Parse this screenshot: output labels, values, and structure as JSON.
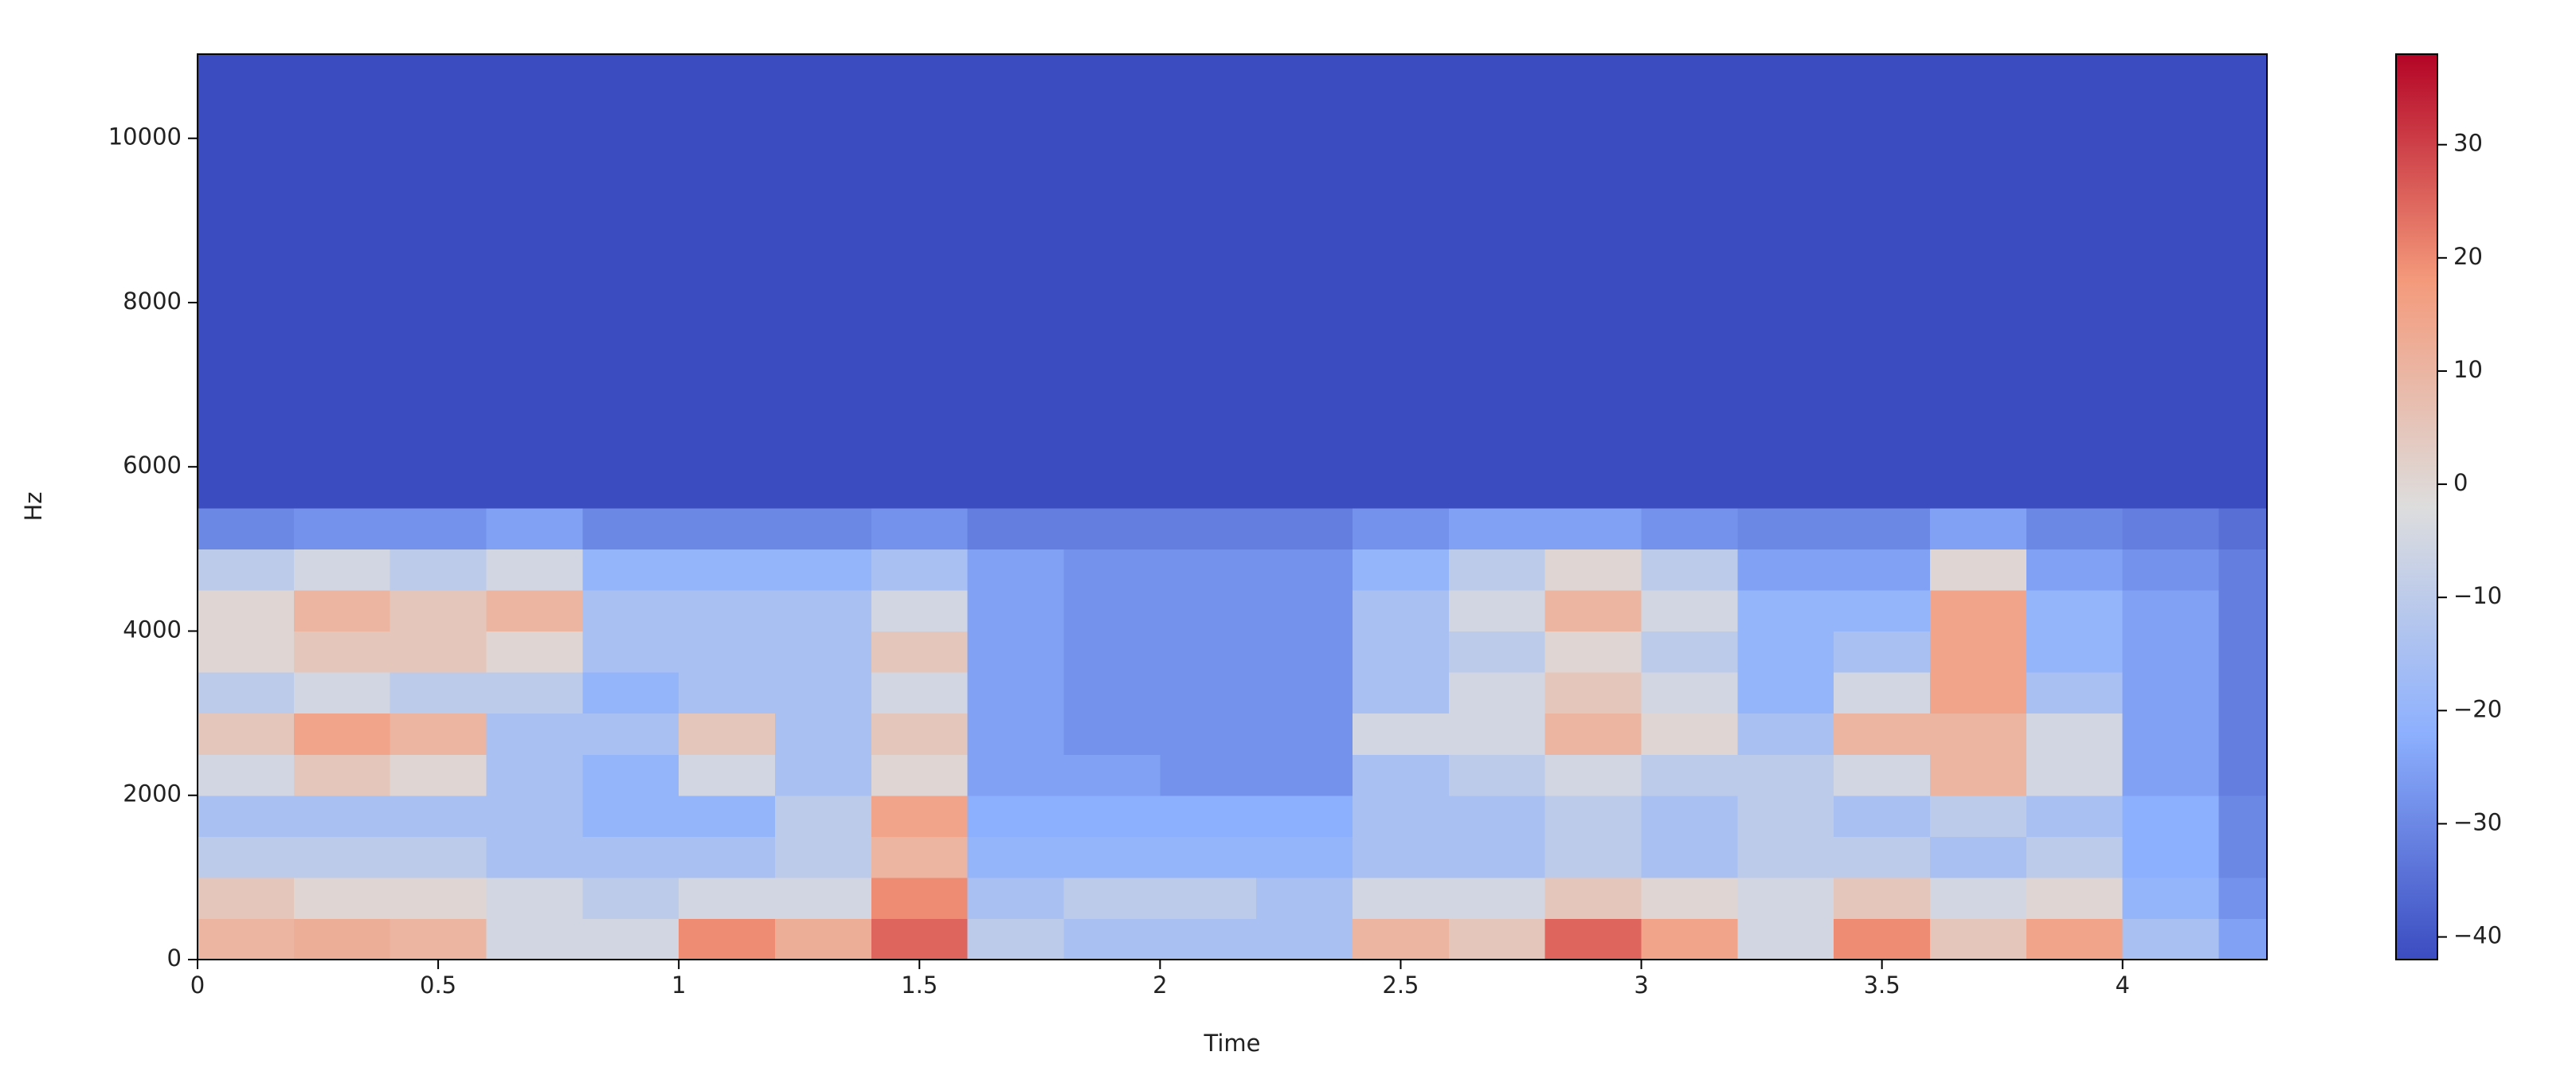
{
  "chart_data": {
    "type": "spectrogram",
    "xlabel": "Time",
    "ylabel": "Hz",
    "xlim": [
      0,
      4.3
    ],
    "ylim": [
      0,
      11025
    ],
    "xticks": [
      0,
      0.5,
      1,
      1.5,
      2,
      2.5,
      3,
      3.5,
      4
    ],
    "yticks": [
      0,
      2000,
      4000,
      6000,
      8000,
      10000
    ],
    "xbins": [
      0,
      0.2,
      0.4,
      0.6,
      0.8,
      1.0,
      1.2,
      1.4,
      1.6,
      1.8,
      2.0,
      2.2,
      2.4,
      2.6,
      2.8,
      3.0,
      3.2,
      3.4,
      3.6,
      3.8,
      4.0,
      4.2,
      4.3
    ],
    "ybins": [
      0,
      500,
      1000,
      1500,
      2000,
      2500,
      3000,
      3500,
      4000,
      4500,
      5000,
      5500,
      11025
    ],
    "values": [
      [
        10,
        12,
        10,
        -5,
        -5,
        20,
        12,
        25,
        -10,
        -15,
        -15,
        -15,
        10,
        5,
        25,
        15,
        -5,
        20,
        5,
        15,
        -15,
        -25
      ],
      [
        5,
        0,
        0,
        -5,
        -10,
        -5,
        -5,
        20,
        -15,
        -10,
        -10,
        -15,
        -5,
        -5,
        5,
        0,
        -5,
        5,
        -5,
        0,
        -20,
        -28
      ],
      [
        -10,
        -10,
        -10,
        -15,
        -15,
        -15,
        -10,
        10,
        -20,
        -20,
        -20,
        -20,
        -15,
        -15,
        -10,
        -15,
        -10,
        -10,
        -15,
        -10,
        -22,
        -30
      ],
      [
        -15,
        -15,
        -15,
        -15,
        -20,
        -20,
        -10,
        15,
        -22,
        -22,
        -22,
        -22,
        -15,
        -15,
        -10,
        -15,
        -10,
        -15,
        -10,
        -15,
        -22,
        -30
      ],
      [
        -5,
        5,
        0,
        -15,
        -20,
        -5,
        -15,
        0,
        -25,
        -25,
        -28,
        -28,
        -15,
        -10,
        -5,
        -10,
        -10,
        -5,
        10,
        -5,
        -25,
        -32
      ],
      [
        5,
        15,
        10,
        -15,
        -15,
        5,
        -15,
        5,
        -25,
        -28,
        -28,
        -28,
        -5,
        -5,
        10,
        0,
        -15,
        10,
        10,
        -5,
        -25,
        -32
      ],
      [
        -10,
        -5,
        -10,
        -10,
        -20,
        -15,
        -15,
        -5,
        -25,
        -28,
        -28,
        -28,
        -15,
        -5,
        5,
        -5,
        -20,
        -5,
        15,
        -15,
        -25,
        -32
      ],
      [
        0,
        5,
        5,
        0,
        -15,
        -15,
        -15,
        5,
        -25,
        -28,
        -28,
        -28,
        -15,
        -10,
        0,
        -10,
        -20,
        -15,
        15,
        -20,
        -25,
        -32
      ],
      [
        0,
        10,
        5,
        10,
        -15,
        -15,
        -15,
        -5,
        -25,
        -28,
        -28,
        -28,
        -15,
        -5,
        10,
        -5,
        -20,
        -20,
        15,
        -20,
        -25,
        -32
      ],
      [
        -10,
        -5,
        -10,
        -5,
        -20,
        -20,
        -20,
        -15,
        -25,
        -28,
        -28,
        -28,
        -20,
        -10,
        0,
        -10,
        -25,
        -25,
        0,
        -25,
        -28,
        -32
      ],
      [
        -30,
        -28,
        -28,
        -25,
        -30,
        -30,
        -30,
        -28,
        -32,
        -32,
        -32,
        -32,
        -28,
        -25,
        -25,
        -28,
        -30,
        -30,
        -25,
        -30,
        -32,
        -35
      ],
      [
        -42,
        -42,
        -42,
        -42,
        -42,
        -42,
        -42,
        -42,
        -42,
        -42,
        -42,
        -42,
        -42,
        -42,
        -42,
        -42,
        -42,
        -42,
        -42,
        -42,
        -42,
        -42
      ]
    ],
    "colormap": "coolwarm",
    "clim": [
      -42,
      38
    ],
    "cticks": [
      {
        "value": -40,
        "label": "−40"
      },
      {
        "value": -30,
        "label": "−30"
      },
      {
        "value": -20,
        "label": "−20"
      },
      {
        "value": -10,
        "label": "−10"
      },
      0,
      10,
      20,
      30
    ]
  }
}
